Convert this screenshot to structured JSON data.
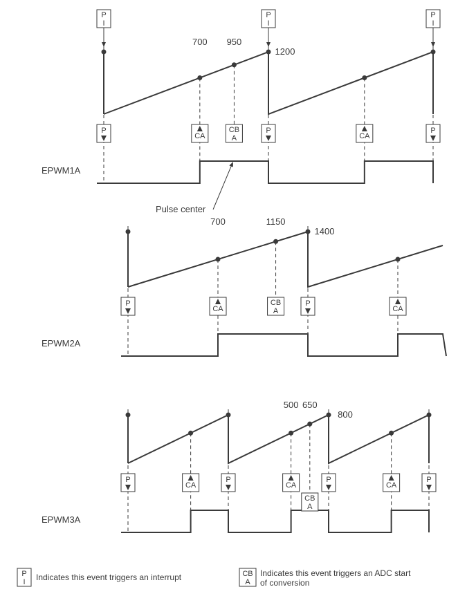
{
  "colors": {
    "stroke": "#3a3a3a",
    "background": "#ffffff"
  },
  "typography": {
    "label_fontsize": 13,
    "value_fontsize": 13,
    "event_fontsize": 11,
    "legend_fontsize": 12,
    "font_family": "Arial, Helvetica, sans-serif"
  },
  "events": {
    "pi_top": "P",
    "pi_bottom": "I",
    "p": "P",
    "ca": "CA",
    "cba_top": "CB",
    "cba_bottom": "A"
  },
  "pulse_center_label": "Pulse center",
  "panel1": {
    "label": "EPWM1A",
    "period": 1200,
    "ca_value": 700,
    "cba_value": 950,
    "period_label": "1200",
    "ca_label": "700",
    "cba_label": "950"
  },
  "panel2": {
    "label": "EPWM2A",
    "period": 1400,
    "ca_value": 700,
    "cba_value": 1150,
    "period_label": "1400",
    "ca_label": "700",
    "cba_label": "1150"
  },
  "panel3": {
    "label": "EPWM3A",
    "period": 800,
    "ca_value": 500,
    "cba_value": 650,
    "period_label": "800",
    "ca_label": "500",
    "cba_label": "650"
  },
  "legend": {
    "pi_text": "Indicates this event triggers an interrupt",
    "cba_text_line1": "Indicates this event triggers an ADC start",
    "cba_text_line2": "of conversion"
  }
}
